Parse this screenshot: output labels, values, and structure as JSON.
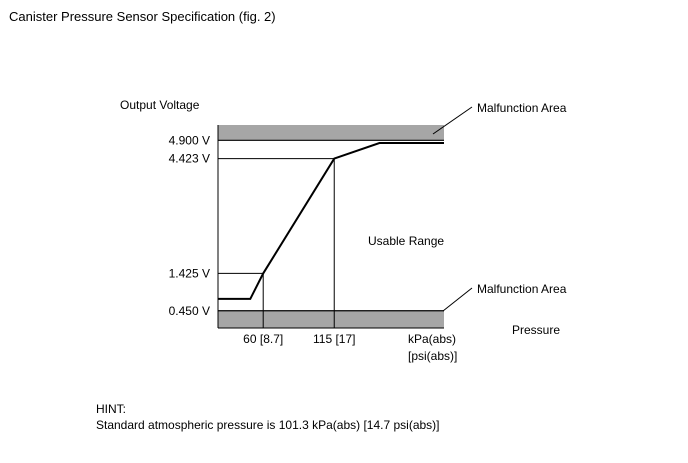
{
  "title": "Canister Pressure Sensor Specification (fig. 2)",
  "chart_data": {
    "type": "line",
    "ylabel": "Output Voltage",
    "xlabel": "Pressure",
    "x_unit": [
      "kPa(abs)",
      "[psi(abs)]"
    ],
    "ylim": [
      0.0,
      5.3
    ],
    "xlim": [
      25,
      200
    ],
    "y_ticks": [
      {
        "value": 0.45,
        "label": "0.450 V"
      },
      {
        "value": 1.425,
        "label": "1.425 V"
      },
      {
        "value": 4.423,
        "label": "4.423 V"
      },
      {
        "value": 4.9,
        "label": "4.900 V"
      }
    ],
    "x_ticks": [
      {
        "value": 60,
        "label": "60 [8.7]"
      },
      {
        "value": 115,
        "label": "115 [17]"
      }
    ],
    "series": [
      {
        "x": [
          25,
          50,
          60,
          115,
          150,
          200
        ],
        "y": [
          0.76,
          0.76,
          1.425,
          4.423,
          4.83,
          4.83
        ]
      }
    ],
    "bands": [
      {
        "from": 4.9,
        "to": 5.3,
        "label": "Malfunction Area",
        "color": "#a6a6a6"
      },
      {
        "from": 0.0,
        "to": 0.45,
        "label": "Malfunction Area",
        "color": "#a6a6a6"
      }
    ],
    "annotations": [
      "Usable Range"
    ]
  },
  "hint": {
    "label": "HINT:",
    "text": "Standard atmospheric pressure is 101.3 kPa(abs) [14.7 psi(abs)]"
  }
}
